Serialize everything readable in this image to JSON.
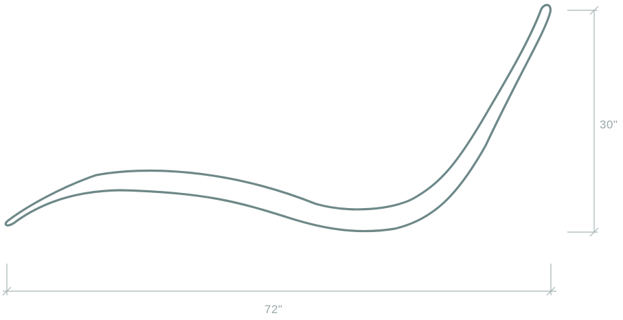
{
  "colors": {
    "outline": "#6e8888",
    "dimension_line": "#a6b3b3",
    "dimension_text": "#9aa8a8"
  },
  "dimensions": {
    "width_label": "72\"",
    "height_label": "30\""
  }
}
